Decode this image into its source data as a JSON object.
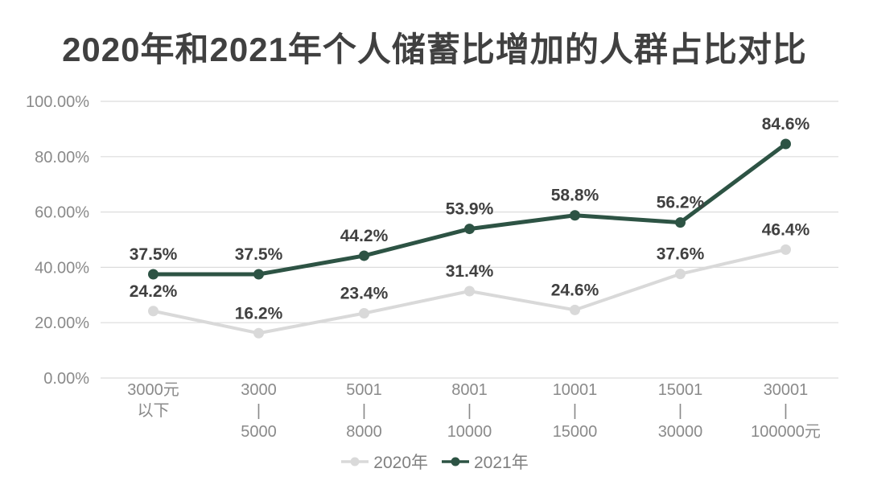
{
  "header": {
    "title": "2020年和2021年个人储蓄比增加的人群占比对比"
  },
  "chart_data": {
    "type": "line",
    "title": "2020年和2021年个人储蓄比增加的人群占比对比",
    "categories": [
      [
        "3000元",
        "以下"
      ],
      [
        "3000",
        "|",
        "5000"
      ],
      [
        "5001",
        "|",
        "8000"
      ],
      [
        "8001",
        "|",
        "10000"
      ],
      [
        "10001",
        "|",
        "15000"
      ],
      [
        "15001",
        "|",
        "30000"
      ],
      [
        "30001",
        "|",
        "100000元"
      ]
    ],
    "series": [
      {
        "name": "2020年",
        "color": "#d9d9d9",
        "line_width": 4,
        "values": [
          24.2,
          16.2,
          23.4,
          31.4,
          24.6,
          37.6,
          46.4
        ],
        "labels": [
          "24.2%",
          "16.2%",
          "23.4%",
          "31.4%",
          "24.6%",
          "37.6%",
          "46.4%"
        ]
      },
      {
        "name": "2021年",
        "color": "#2d5344",
        "line_width": 5,
        "values": [
          37.5,
          37.5,
          44.2,
          53.9,
          58.8,
          56.2,
          84.6
        ],
        "labels": [
          "37.5%",
          "37.5%",
          "44.2%",
          "53.9%",
          "58.8%",
          "56.2%",
          "84.6%"
        ]
      }
    ],
    "y_ticks": [
      "0.00%",
      "20.00%",
      "40.00%",
      "60.00%",
      "80.00%",
      "100.00%"
    ],
    "ylim": [
      0,
      100
    ],
    "grid": true,
    "legend_position": "bottom",
    "xlabel": "",
    "ylabel": "",
    "colors": {
      "title": "#404040",
      "value_label": "#404040",
      "axis_label": "#8a8a8a",
      "gridline": "#dcdcdc",
      "legend_text": "#808080",
      "background": "#ffffff"
    }
  }
}
